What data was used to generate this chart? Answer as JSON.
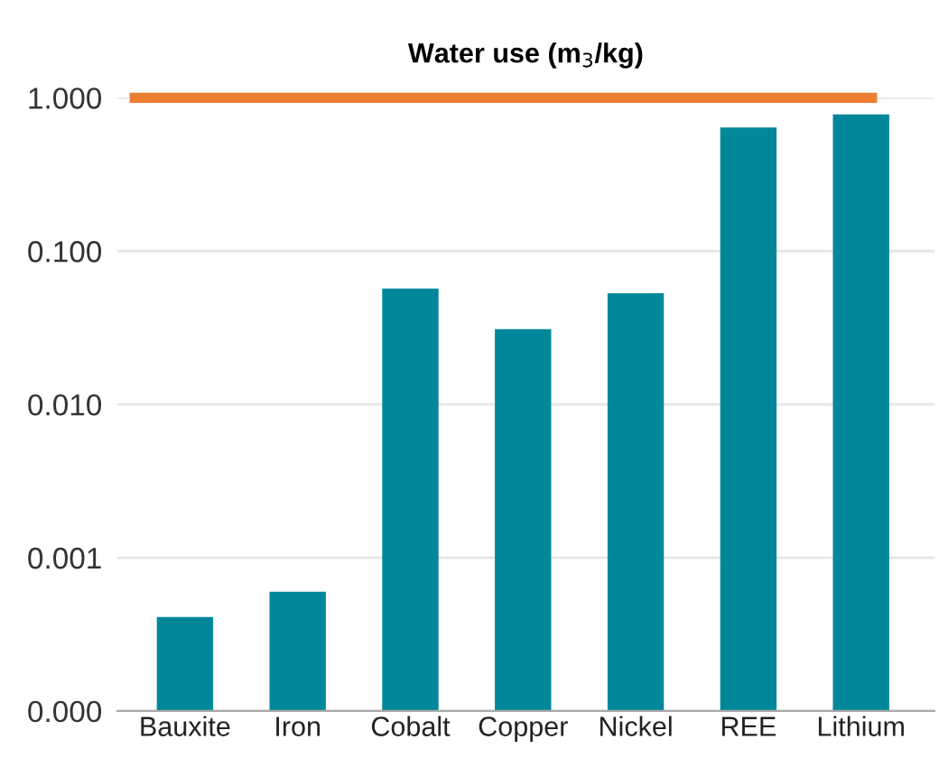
{
  "chart_data": {
    "type": "bar",
    "title": "Water use (m$_{3}$/kg)",
    "categories": [
      "Bauxite",
      "Iron",
      "Cobalt",
      "Copper",
      "Nickel",
      "REE",
      "Lithium"
    ],
    "values": [
      0.00041,
      0.0006,
      0.057,
      0.031,
      0.053,
      0.64,
      0.78
    ],
    "color": "#00889a",
    "log": "y",
    "ylim": [
      0.0001,
      1.0
    ],
    "yticks": [
      {
        "value": 0.0001,
        "label": "0.000"
      },
      {
        "value": 0.001,
        "label": "0.001"
      },
      {
        "value": 0.01,
        "label": "0.010"
      },
      {
        "value": 0.1,
        "label": "0.100"
      },
      {
        "value": 1.0,
        "label": "1.000"
      }
    ],
    "grid": "y",
    "ref_lines": [
      {
        "axis": "y",
        "value": 1.0,
        "color": "#ed7d31"
      }
    ]
  }
}
